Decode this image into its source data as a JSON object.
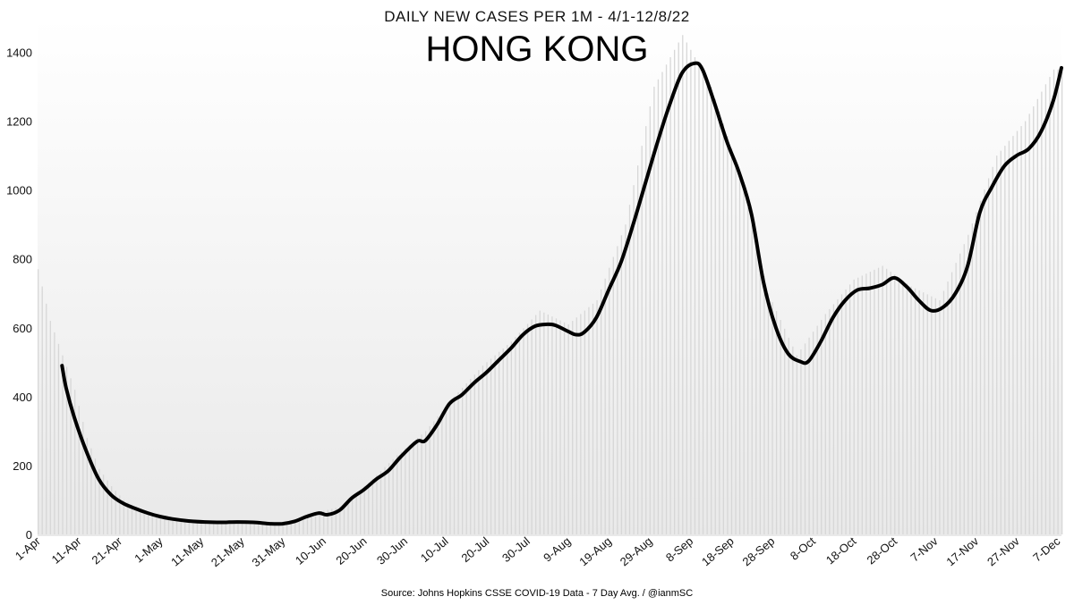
{
  "chart_data": {
    "type": "line",
    "subtitle": "DAILY NEW CASES PER 1M - 4/1-12/8/22",
    "title": "HONG KONG",
    "source": "Source: Johns Hopkins CSSE COVID-19 Data - 7 Day Avg. / @ianmSC",
    "xlabel": "",
    "ylabel": "",
    "ylim": [
      0,
      1500
    ],
    "yticks": [
      0,
      200,
      400,
      600,
      800,
      1000,
      1200,
      1400
    ],
    "xlim": [
      "2022-04-01",
      "2022-12-08"
    ],
    "xtick_labels": [
      "1-Apr",
      "11-Apr",
      "21-Apr",
      "1-May",
      "11-May",
      "21-May",
      "31-May",
      "10-Jun",
      "20-Jun",
      "30-Jun",
      "10-Jul",
      "20-Jul",
      "30-Jul",
      "9-Aug",
      "19-Aug",
      "29-Aug",
      "8-Sep",
      "18-Sep",
      "28-Sep",
      "8-Oct",
      "18-Oct",
      "28-Oct",
      "7-Nov",
      "17-Nov",
      "27-Nov",
      "7-Dec"
    ],
    "grid": false,
    "series": [
      {
        "kind": "line",
        "color": "#000000",
        "points": [
          [
            "2022-04-07",
            490
          ],
          [
            "2022-04-08",
            425
          ],
          [
            "2022-04-10",
            340
          ],
          [
            "2022-04-13",
            240
          ],
          [
            "2022-04-16",
            160
          ],
          [
            "2022-04-19",
            115
          ],
          [
            "2022-04-22",
            90
          ],
          [
            "2022-04-25",
            75
          ],
          [
            "2022-04-28",
            62
          ],
          [
            "2022-05-01",
            52
          ],
          [
            "2022-05-04",
            45
          ],
          [
            "2022-05-08",
            39
          ],
          [
            "2022-05-12",
            36
          ],
          [
            "2022-05-16",
            35
          ],
          [
            "2022-05-20",
            36
          ],
          [
            "2022-05-24",
            35
          ],
          [
            "2022-05-28",
            31
          ],
          [
            "2022-05-31",
            31
          ],
          [
            "2022-06-03",
            38
          ],
          [
            "2022-06-06",
            52
          ],
          [
            "2022-06-09",
            62
          ],
          [
            "2022-06-11",
            57
          ],
          [
            "2022-06-14",
            70
          ],
          [
            "2022-06-17",
            105
          ],
          [
            "2022-06-20",
            130
          ],
          [
            "2022-06-23",
            160
          ],
          [
            "2022-06-26",
            185
          ],
          [
            "2022-06-29",
            225
          ],
          [
            "2022-07-03",
            270
          ],
          [
            "2022-07-05",
            272
          ],
          [
            "2022-07-08",
            320
          ],
          [
            "2022-07-11",
            380
          ],
          [
            "2022-07-14",
            405
          ],
          [
            "2022-07-17",
            440
          ],
          [
            "2022-07-20",
            470
          ],
          [
            "2022-07-23",
            505
          ],
          [
            "2022-07-26",
            540
          ],
          [
            "2022-07-29",
            580
          ],
          [
            "2022-08-01",
            605
          ],
          [
            "2022-08-04",
            610
          ],
          [
            "2022-08-06",
            607
          ],
          [
            "2022-08-09",
            590
          ],
          [
            "2022-08-11",
            580
          ],
          [
            "2022-08-13",
            587
          ],
          [
            "2022-08-16",
            630
          ],
          [
            "2022-08-19",
            710
          ],
          [
            "2022-08-22",
            790
          ],
          [
            "2022-08-25",
            900
          ],
          [
            "2022-08-28",
            1020
          ],
          [
            "2022-08-31",
            1140
          ],
          [
            "2022-09-03",
            1250
          ],
          [
            "2022-09-06",
            1340
          ],
          [
            "2022-09-09",
            1368
          ],
          [
            "2022-09-11",
            1350
          ],
          [
            "2022-09-14",
            1250
          ],
          [
            "2022-09-17",
            1140
          ],
          [
            "2022-09-20",
            1050
          ],
          [
            "2022-09-23",
            930
          ],
          [
            "2022-09-26",
            730
          ],
          [
            "2022-09-29",
            600
          ],
          [
            "2022-10-02",
            525
          ],
          [
            "2022-10-05",
            502
          ],
          [
            "2022-10-07",
            503
          ],
          [
            "2022-10-10",
            560
          ],
          [
            "2022-10-13",
            630
          ],
          [
            "2022-10-16",
            680
          ],
          [
            "2022-10-19",
            710
          ],
          [
            "2022-10-22",
            715
          ],
          [
            "2022-10-25",
            725
          ],
          [
            "2022-10-28",
            745
          ],
          [
            "2022-10-31",
            720
          ],
          [
            "2022-11-03",
            680
          ],
          [
            "2022-11-06",
            650
          ],
          [
            "2022-11-09",
            660
          ],
          [
            "2022-11-12",
            700
          ],
          [
            "2022-11-15",
            780
          ],
          [
            "2022-11-18",
            935
          ],
          [
            "2022-11-21",
            1010
          ],
          [
            "2022-11-24",
            1070
          ],
          [
            "2022-11-27",
            1100
          ],
          [
            "2022-11-30",
            1120
          ],
          [
            "2022-12-03",
            1170
          ],
          [
            "2022-12-06",
            1260
          ],
          [
            "2022-12-08",
            1355
          ]
        ]
      },
      {
        "kind": "bar",
        "color": "#d7d7d7",
        "points": [
          [
            "2022-04-01",
            770
          ],
          [
            "2022-04-04",
            620
          ],
          [
            "2022-04-07",
            520
          ],
          [
            "2022-04-10",
            420
          ],
          [
            "2022-04-13",
            280
          ],
          [
            "2022-04-16",
            190
          ],
          [
            "2022-04-19",
            140
          ],
          [
            "2022-04-22",
            100
          ],
          [
            "2022-04-25",
            80
          ],
          [
            "2022-04-28",
            65
          ],
          [
            "2022-05-01",
            55
          ],
          [
            "2022-05-08",
            42
          ],
          [
            "2022-05-15",
            38
          ],
          [
            "2022-05-22",
            38
          ],
          [
            "2022-05-31",
            33
          ],
          [
            "2022-06-07",
            60
          ],
          [
            "2022-06-14",
            80
          ],
          [
            "2022-06-21",
            150
          ],
          [
            "2022-06-28",
            230
          ],
          [
            "2022-07-05",
            300
          ],
          [
            "2022-07-12",
            400
          ],
          [
            "2022-07-19",
            490
          ],
          [
            "2022-07-26",
            560
          ],
          [
            "2022-08-02",
            650
          ],
          [
            "2022-08-09",
            610
          ],
          [
            "2022-08-16",
            680
          ],
          [
            "2022-08-23",
            900
          ],
          [
            "2022-08-30",
            1300
          ],
          [
            "2022-09-06",
            1450
          ],
          [
            "2022-09-13",
            1300
          ],
          [
            "2022-09-20",
            1050
          ],
          [
            "2022-09-27",
            700
          ],
          [
            "2022-10-04",
            520
          ],
          [
            "2022-10-11",
            640
          ],
          [
            "2022-10-18",
            740
          ],
          [
            "2022-10-25",
            780
          ],
          [
            "2022-11-01",
            720
          ],
          [
            "2022-11-08",
            680
          ],
          [
            "2022-11-15",
            870
          ],
          [
            "2022-11-22",
            1100
          ],
          [
            "2022-11-29",
            1200
          ],
          [
            "2022-12-06",
            1350
          ]
        ]
      }
    ]
  }
}
